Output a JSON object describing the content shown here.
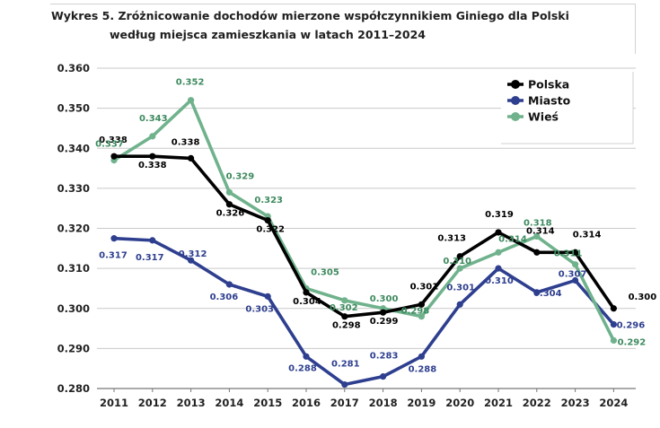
{
  "chart_data": {
    "type": "line",
    "title_line1": "Wykres 5. Zróżnicowanie dochodów mierzone współczynnikiem Giniego dla Polski",
    "title_line2": "według miejsca zamieszkania w latach 2011–2024",
    "xlabel": "",
    "ylabel": "",
    "categories": [
      "2011",
      "2012",
      "2013",
      "2014",
      "2015",
      "2016",
      "2017",
      "2018",
      "2019",
      "2020",
      "2021",
      "2022",
      "2023",
      "2024"
    ],
    "ylim": [
      0.28,
      0.36
    ],
    "yticks": [
      "0.280",
      "0.290",
      "0.300",
      "0.310",
      "0.320",
      "0.330",
      "0.340",
      "0.350",
      "0.360"
    ],
    "grid": true,
    "legend_position": "top-right",
    "series": [
      {
        "name": "Polska",
        "color": "#000000",
        "values": [
          0.338,
          0.338,
          0.3375,
          0.326,
          0.322,
          0.304,
          0.298,
          0.299,
          0.301,
          0.313,
          0.319,
          0.314,
          0.314,
          0.3
        ],
        "labels": [
          "0.338",
          "0.338",
          "0.338",
          "0.326",
          "0.322",
          "0.304",
          "0.298",
          "0.299",
          "0.301",
          "0.313",
          "0.319",
          "0.314",
          "0.314",
          "0.300"
        ]
      },
      {
        "name": "Miasto",
        "color": "#2e3f8f",
        "values": [
          0.3175,
          0.317,
          0.312,
          0.306,
          0.303,
          0.288,
          0.281,
          0.283,
          0.288,
          0.301,
          0.31,
          0.304,
          0.307,
          0.296
        ],
        "labels": [
          "0.317",
          "0.317",
          "0.312",
          "0.306",
          "0.303",
          "0.288",
          "0.281",
          "0.283",
          "0.288",
          "0.301",
          "0.310",
          "0.304",
          "0.307",
          "0.296"
        ]
      },
      {
        "name": "Wieś",
        "color": "#6fb28c",
        "label_color": "#3e8a5f",
        "values": [
          0.337,
          0.343,
          0.352,
          0.329,
          0.323,
          0.305,
          0.302,
          0.3,
          0.298,
          0.31,
          0.314,
          0.318,
          0.311,
          0.292
        ],
        "labels": [
          "0.337",
          "0.343",
          "0.352",
          "0.329",
          "0.323",
          "0.305",
          "0.302",
          "0.300",
          "0.298",
          "0.310",
          "0.314",
          "0.318",
          "0.311",
          "0.292"
        ]
      }
    ]
  }
}
